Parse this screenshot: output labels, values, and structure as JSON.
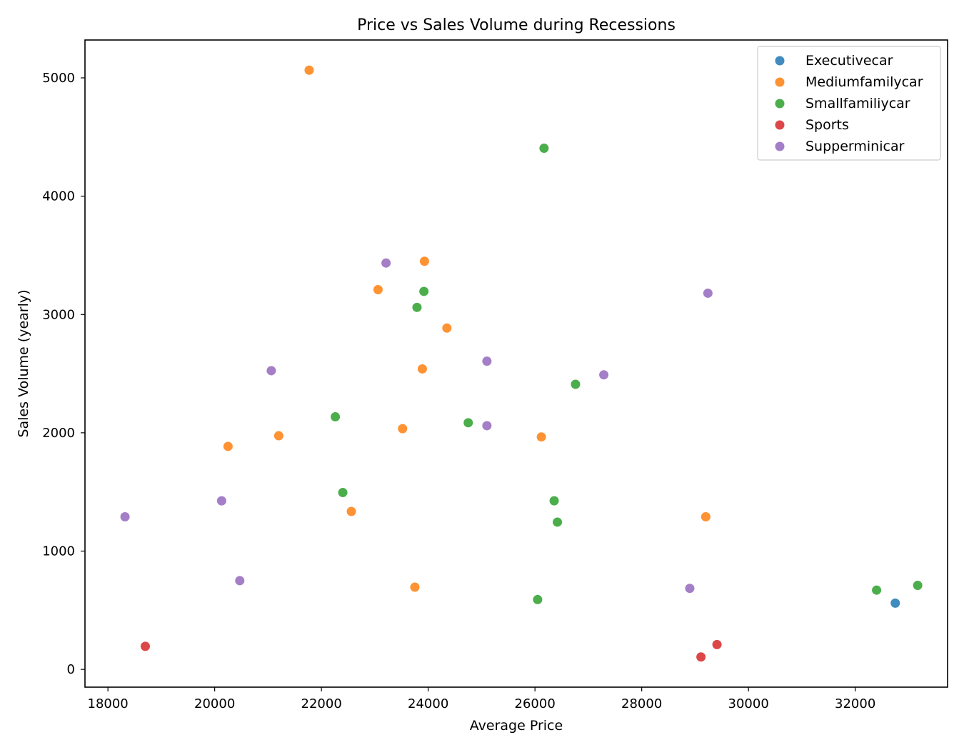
{
  "chart_data": {
    "type": "scatter",
    "title": "Price vs Sales Volume during Recessions",
    "xlabel": "Average Price",
    "ylabel": "Sales Volume (yearly)",
    "xlim": [
      17570,
      33730
    ],
    "ylim": [
      -150,
      5320
    ],
    "xticks": [
      18000,
      20000,
      22000,
      24000,
      26000,
      28000,
      30000,
      32000
    ],
    "yticks": [
      0,
      1000,
      2000,
      3000,
      4000,
      5000
    ],
    "grid": false,
    "legend_position": "top-right",
    "series": [
      {
        "name": "Executivecar",
        "color": "#1f77b4",
        "points": [
          [
            32750,
            560
          ]
        ]
      },
      {
        "name": "Mediumfamilycar",
        "color": "#ff7f0e",
        "points": [
          [
            21770,
            5065
          ],
          [
            23930,
            3450
          ],
          [
            23060,
            3210
          ],
          [
            24350,
            2885
          ],
          [
            23890,
            2540
          ],
          [
            23520,
            2035
          ],
          [
            21200,
            1975
          ],
          [
            20250,
            1885
          ],
          [
            26120,
            1965
          ],
          [
            22560,
            1335
          ],
          [
            29200,
            1290
          ],
          [
            23750,
            695
          ]
        ]
      },
      {
        "name": "Smallfamiliycar",
        "color": "#2ca02c",
        "points": [
          [
            26170,
            4405
          ],
          [
            23920,
            3195
          ],
          [
            23790,
            3060
          ],
          [
            26760,
            2410
          ],
          [
            22260,
            2135
          ],
          [
            24750,
            2085
          ],
          [
            22400,
            1495
          ],
          [
            26360,
            1425
          ],
          [
            26420,
            1245
          ],
          [
            26050,
            590
          ],
          [
            32400,
            670
          ],
          [
            33170,
            710
          ]
        ]
      },
      {
        "name": "Sports",
        "color": "#d62728",
        "points": [
          [
            18700,
            195
          ],
          [
            29110,
            105
          ],
          [
            29410,
            210
          ]
        ]
      },
      {
        "name": "Supperminicar",
        "color": "#9467bd",
        "points": [
          [
            23210,
            3435
          ],
          [
            29240,
            3180
          ],
          [
            25100,
            2605
          ],
          [
            27290,
            2490
          ],
          [
            21060,
            2525
          ],
          [
            25100,
            2060
          ],
          [
            20130,
            1425
          ],
          [
            18320,
            1290
          ],
          [
            20470,
            750
          ],
          [
            28900,
            685
          ]
        ]
      }
    ]
  }
}
